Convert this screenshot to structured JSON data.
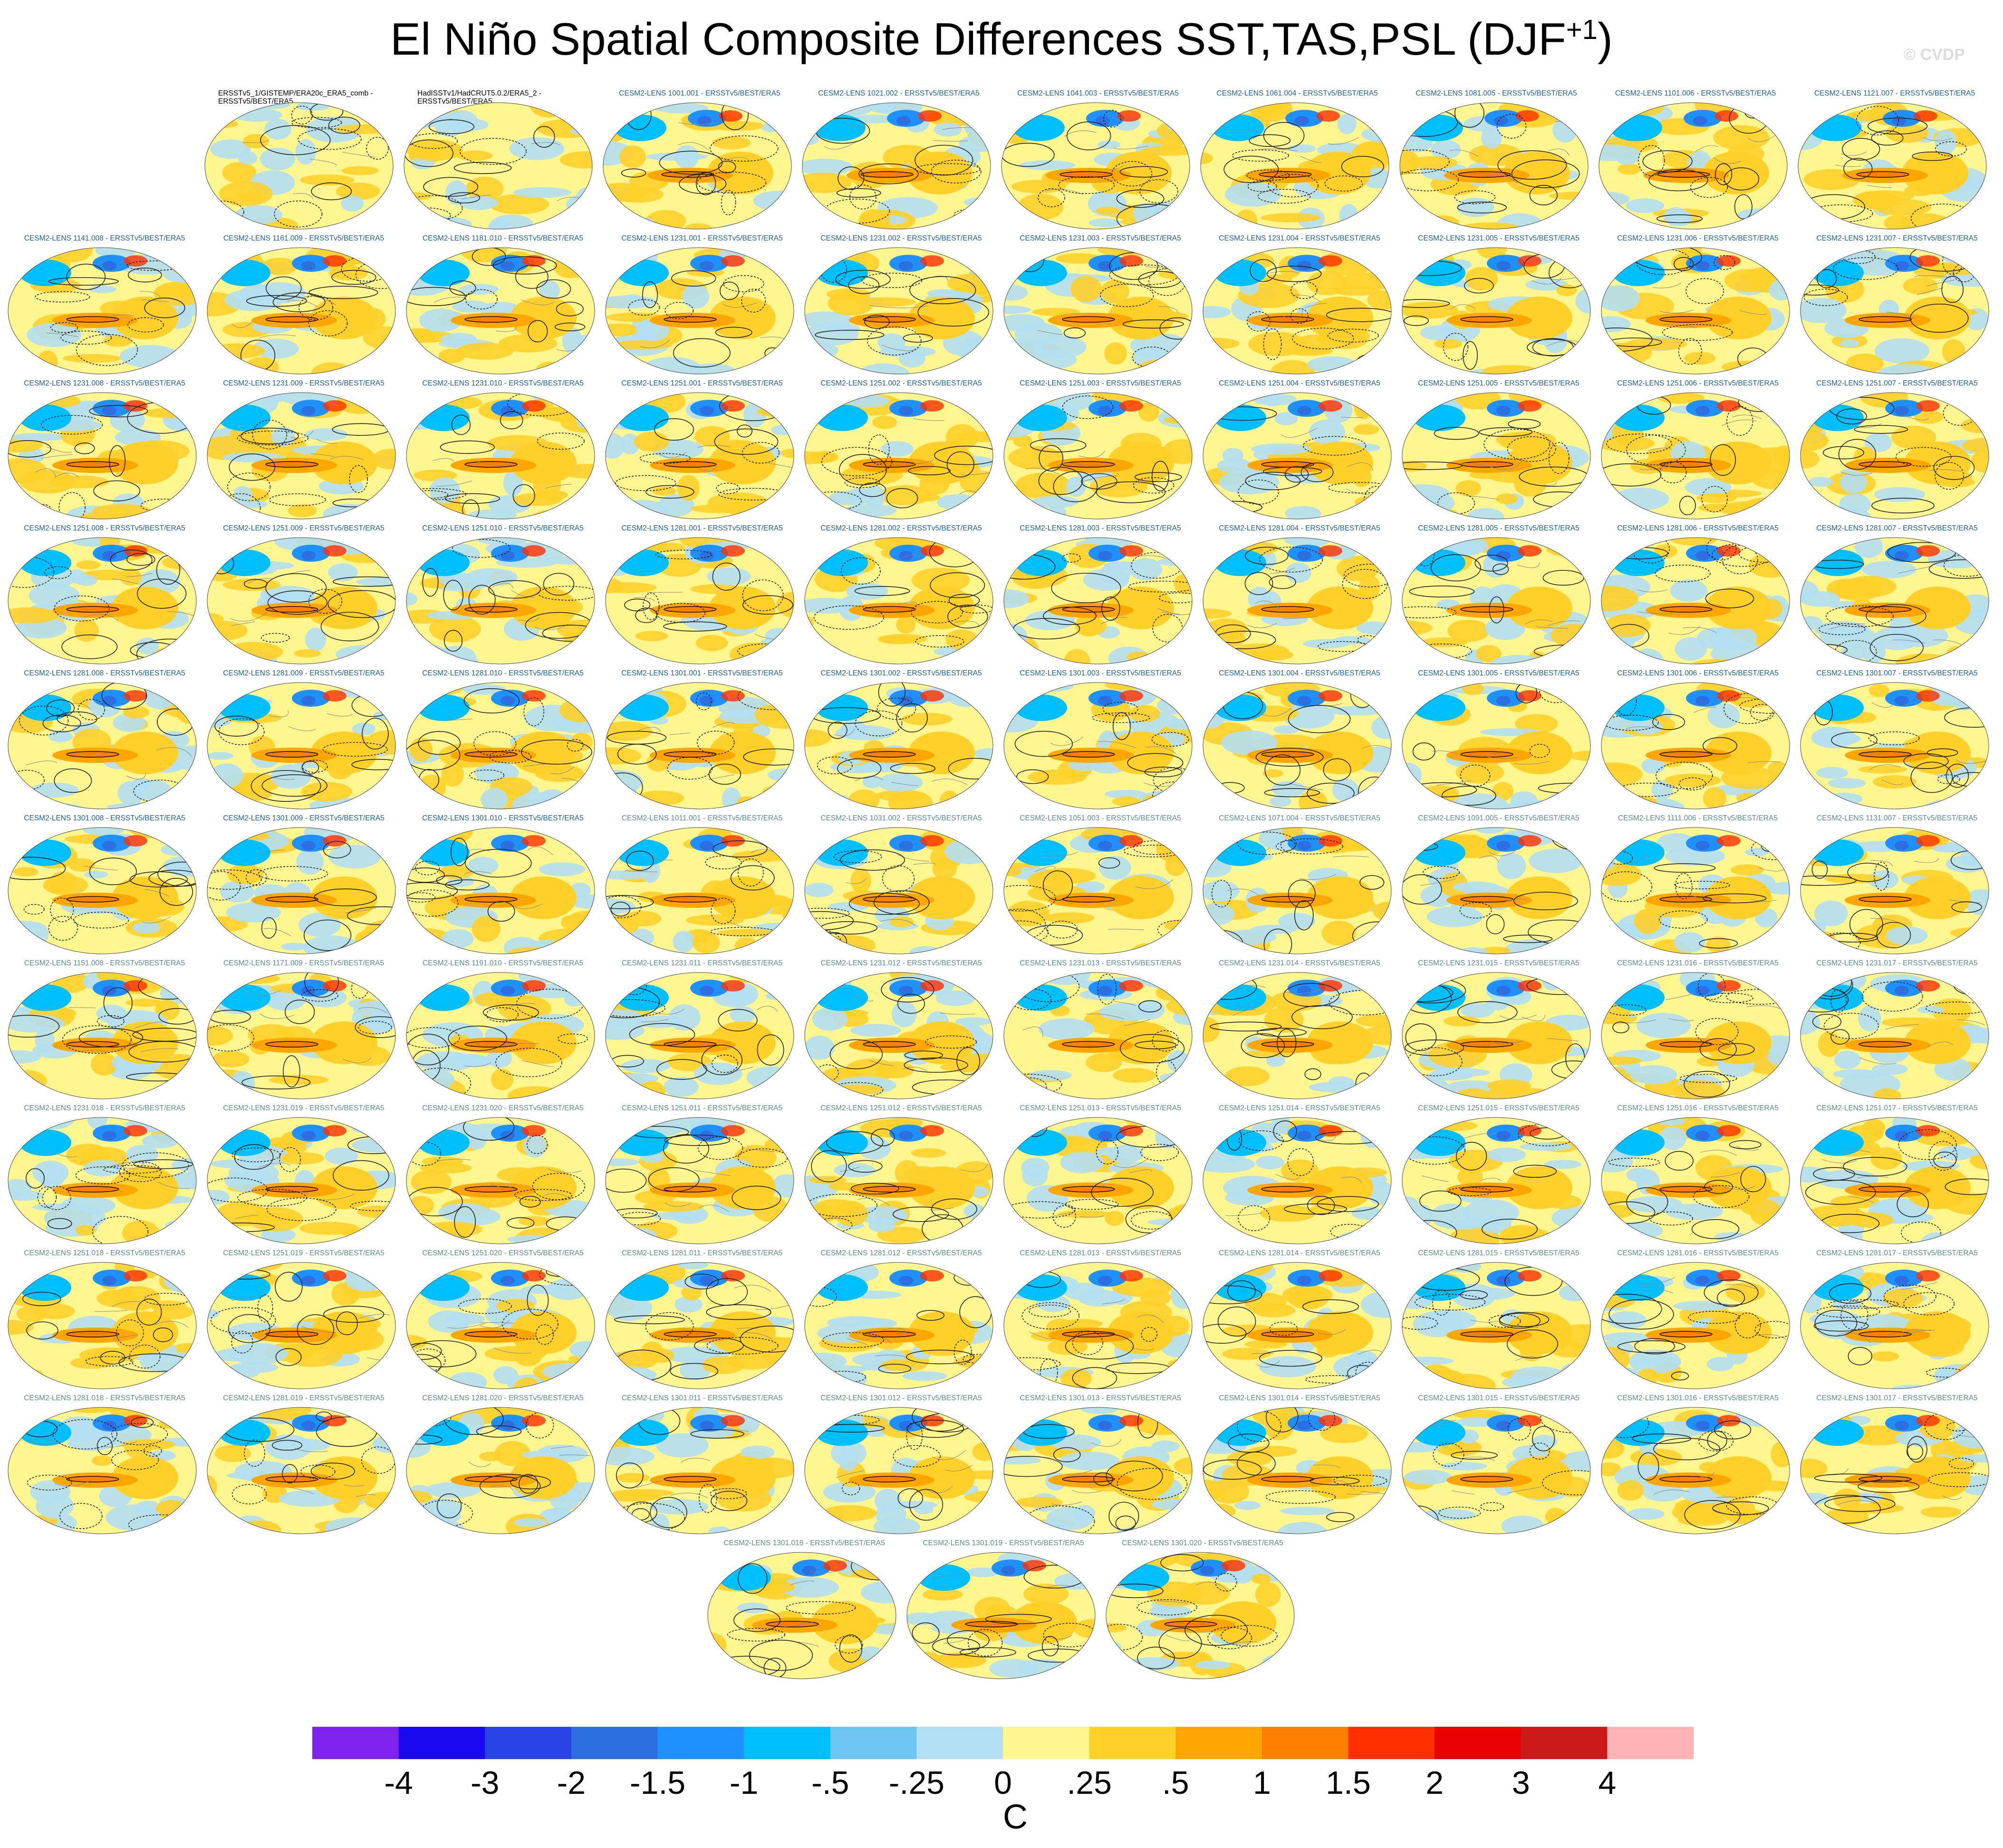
{
  "figure": {
    "title_main": "El Niño Spatial Composite Differences SST,TAS,PSL (DJF",
    "title_sup": "+1",
    "title_close": ")",
    "credit": "© CVDP"
  },
  "chart_data": {
    "type": "heatmap",
    "layout": "grid of global map panels (SST/TAS shading, PSL contours)",
    "panels": [
      {
        "label": "ERSSTv5_1/GISTEMP/ERA20c_ERA5_comb - ERSSTv5/BEST/ERA5",
        "kind": "obs"
      },
      {
        "label": "HadISSTv1/HadCRUT5.0.2/ERA5_2 - ERSSTv5/BEST/ERA5",
        "kind": "obs"
      },
      {
        "label": "CESM2-LENS 1001.001 - ERSSTv5/BEST/ERA5"
      },
      {
        "label": "CESM2-LENS 1021.002 - ERSSTv5/BEST/ERA5"
      },
      {
        "label": "CESM2-LENS 1041.003 - ERSSTv5/BEST/ERA5"
      },
      {
        "label": "CESM2-LENS 1061.004 - ERSSTv5/BEST/ERA5"
      },
      {
        "label": "CESM2-LENS 1081.005 - ERSSTv5/BEST/ERA5"
      },
      {
        "label": "CESM2-LENS 1101.006 - ERSSTv5/BEST/ERA5"
      },
      {
        "label": "CESM2-LENS 1121.007 - ERSSTv5/BEST/ERA5"
      },
      {
        "label": "CESM2-LENS 1141.008 - ERSSTv5/BEST/ERA5"
      },
      {
        "label": "CESM2-LENS 1161.009 - ERSSTv5/BEST/ERA5"
      },
      {
        "label": "CESM2-LENS 1181.010 - ERSSTv5/BEST/ERA5"
      },
      {
        "label": "CESM2-LENS 1231.001 - ERSSTv5/BEST/ERA5"
      },
      {
        "label": "CESM2-LENS 1231.002 - ERSSTv5/BEST/ERA5"
      },
      {
        "label": "CESM2-LENS 1231.003 - ERSSTv5/BEST/ERA5"
      },
      {
        "label": "CESM2-LENS 1231.004 - ERSSTv5/BEST/ERA5"
      },
      {
        "label": "CESM2-LENS 1231.005 - ERSSTv5/BEST/ERA5"
      },
      {
        "label": "CESM2-LENS 1231.006 - ERSSTv5/BEST/ERA5"
      },
      {
        "label": "CESM2-LENS 1231.007 - ERSSTv5/BEST/ERA5"
      },
      {
        "label": "CESM2-LENS 1231.008 - ERSSTv5/BEST/ERA5"
      },
      {
        "label": "CESM2-LENS 1231.009 - ERSSTv5/BEST/ERA5"
      },
      {
        "label": "CESM2-LENS 1231.010 - ERSSTv5/BEST/ERA5"
      },
      {
        "label": "CESM2-LENS 1251.001 - ERSSTv5/BEST/ERA5"
      },
      {
        "label": "CESM2-LENS 1251.002 - ERSSTv5/BEST/ERA5"
      },
      {
        "label": "CESM2-LENS 1251.003 - ERSSTv5/BEST/ERA5"
      },
      {
        "label": "CESM2-LENS 1251.004 - ERSSTv5/BEST/ERA5"
      },
      {
        "label": "CESM2-LENS 1251.005 - ERSSTv5/BEST/ERA5"
      },
      {
        "label": "CESM2-LENS 1251.006 - ERSSTv5/BEST/ERA5"
      },
      {
        "label": "CESM2-LENS 1251.007 - ERSSTv5/BEST/ERA5"
      },
      {
        "label": "CESM2-LENS 1251.008 - ERSSTv5/BEST/ERA5"
      },
      {
        "label": "CESM2-LENS 1251.009 - ERSSTv5/BEST/ERA5"
      },
      {
        "label": "CESM2-LENS 1251.010 - ERSSTv5/BEST/ERA5"
      },
      {
        "label": "CESM2-LENS 1281.001 - ERSSTv5/BEST/ERA5"
      },
      {
        "label": "CESM2-LENS 1281.002 - ERSSTv5/BEST/ERA5"
      },
      {
        "label": "CESM2-LENS 1281.003 - ERSSTv5/BEST/ERA5"
      },
      {
        "label": "CESM2-LENS 1281.004 - ERSSTv5/BEST/ERA5"
      },
      {
        "label": "CESM2-LENS 1281.005 - ERSSTv5/BEST/ERA5"
      },
      {
        "label": "CESM2-LENS 1281.006 - ERSSTv5/BEST/ERA5"
      },
      {
        "label": "CESM2-LENS 1281.007 - ERSSTv5/BEST/ERA5"
      },
      {
        "label": "CESM2-LENS 1281.008 - ERSSTv5/BEST/ERA5"
      },
      {
        "label": "CESM2-LENS 1281.009 - ERSSTv5/BEST/ERA5"
      },
      {
        "label": "CESM2-LENS 1281.010 - ERSSTv5/BEST/ERA5"
      },
      {
        "label": "CESM2-LENS 1301.001 - ERSSTv5/BEST/ERA5"
      },
      {
        "label": "CESM2-LENS 1301.002 - ERSSTv5/BEST/ERA5"
      },
      {
        "label": "CESM2-LENS 1301.003 - ERSSTv5/BEST/ERA5"
      },
      {
        "label": "CESM2-LENS 1301.004 - ERSSTv5/BEST/ERA5"
      },
      {
        "label": "CESM2-LENS 1301.005 - ERSSTv5/BEST/ERA5"
      },
      {
        "label": "CESM2-LENS 1301.006 - ERSSTv5/BEST/ERA5"
      },
      {
        "label": "CESM2-LENS 1301.007 - ERSSTv5/BEST/ERA5"
      },
      {
        "label": "CESM2-LENS 1301.008 - ERSSTv5/BEST/ERA5"
      },
      {
        "label": "CESM2-LENS 1301.009 - ERSSTv5/BEST/ERA5"
      },
      {
        "label": "CESM2-LENS 1301.010 - ERSSTv5/BEST/ERA5"
      },
      {
        "label": "CESM2-LENS 1011.001 - ERSSTv5/BEST/ERA5",
        "kind": "gray"
      },
      {
        "label": "CESM2-LENS 1031.002 - ERSSTv5/BEST/ERA5",
        "kind": "gray"
      },
      {
        "label": "CESM2-LENS 1051.003 - ERSSTv5/BEST/ERA5",
        "kind": "gray"
      },
      {
        "label": "CESM2-LENS 1071.004 - ERSSTv5/BEST/ERA5",
        "kind": "gray"
      },
      {
        "label": "CESM2-LENS 1091.005 - ERSSTv5/BEST/ERA5",
        "kind": "gray"
      },
      {
        "label": "CESM2-LENS 1111.006 - ERSSTv5/BEST/ERA5",
        "kind": "gray"
      },
      {
        "label": "CESM2-LENS 1131.007 - ERSSTv5/BEST/ERA5",
        "kind": "gray"
      },
      {
        "label": "CESM2-LENS 1151.008 - ERSSTv5/BEST/ERA5",
        "kind": "gray"
      },
      {
        "label": "CESM2-LENS 1171.009 - ERSSTv5/BEST/ERA5",
        "kind": "gray"
      },
      {
        "label": "CESM2-LENS 1191.010 - ERSSTv5/BEST/ERA5",
        "kind": "gray"
      },
      {
        "label": "CESM2-LENS 1231.011 - ERSSTv5/BEST/ERA5",
        "kind": "gray"
      },
      {
        "label": "CESM2-LENS 1231.012 - ERSSTv5/BEST/ERA5",
        "kind": "gray"
      },
      {
        "label": "CESM2-LENS 1231.013 - ERSSTv5/BEST/ERA5",
        "kind": "gray"
      },
      {
        "label": "CESM2-LENS 1231.014 - ERSSTv5/BEST/ERA5",
        "kind": "gray"
      },
      {
        "label": "CESM2-LENS 1231.015 - ERSSTv5/BEST/ERA5",
        "kind": "gray"
      },
      {
        "label": "CESM2-LENS 1231.016 - ERSSTv5/BEST/ERA5",
        "kind": "gray"
      },
      {
        "label": "CESM2-LENS 1231.017 - ERSSTv5/BEST/ERA5",
        "kind": "gray"
      },
      {
        "label": "CESM2-LENS 1231.018 - ERSSTv5/BEST/ERA5",
        "kind": "gray"
      },
      {
        "label": "CESM2-LENS 1231.019 - ERSSTv5/BEST/ERA5",
        "kind": "gray"
      },
      {
        "label": "CESM2-LENS 1231.020 - ERSSTv5/BEST/ERA5",
        "kind": "gray"
      },
      {
        "label": "CESM2-LENS 1251.011 - ERSSTv5/BEST/ERA5",
        "kind": "gray"
      },
      {
        "label": "CESM2-LENS 1251.012 - ERSSTv5/BEST/ERA5",
        "kind": "gray"
      },
      {
        "label": "CESM2-LENS 1251.013 - ERSSTv5/BEST/ERA5",
        "kind": "gray"
      },
      {
        "label": "CESM2-LENS 1251.014 - ERSSTv5/BEST/ERA5",
        "kind": "gray"
      },
      {
        "label": "CESM2-LENS 1251.015 - ERSSTv5/BEST/ERA5",
        "kind": "gray"
      },
      {
        "label": "CESM2-LENS 1251.016 - ERSSTv5/BEST/ERA5",
        "kind": "gray"
      },
      {
        "label": "CESM2-LENS 1251.017 - ERSSTv5/BEST/ERA5",
        "kind": "gray"
      },
      {
        "label": "CESM2-LENS 1251.018 - ERSSTv5/BEST/ERA5",
        "kind": "gray"
      },
      {
        "label": "CESM2-LENS 1251.019 - ERSSTv5/BEST/ERA5",
        "kind": "gray"
      },
      {
        "label": "CESM2-LENS 1251.020 - ERSSTv5/BEST/ERA5",
        "kind": "gray"
      },
      {
        "label": "CESM2-LENS 1281.011 - ERSSTv5/BEST/ERA5",
        "kind": "gray"
      },
      {
        "label": "CESM2-LENS 1281.012 - ERSSTv5/BEST/ERA5",
        "kind": "gray"
      },
      {
        "label": "CESM2-LENS 1281.013 - ERSSTv5/BEST/ERA5",
        "kind": "gray"
      },
      {
        "label": "CESM2-LENS 1281.014 - ERSSTv5/BEST/ERA5",
        "kind": "gray"
      },
      {
        "label": "CESM2-LENS 1281.015 - ERSSTv5/BEST/ERA5",
        "kind": "gray"
      },
      {
        "label": "CESM2-LENS 1281.016 - ERSSTv5/BEST/ERA5",
        "kind": "gray"
      },
      {
        "label": "CESM2-LENS 1281.017 - ERSSTv5/BEST/ERA5",
        "kind": "gray"
      },
      {
        "label": "CESM2-LENS 1281.018 - ERSSTv5/BEST/ERA5",
        "kind": "gray"
      },
      {
        "label": "CESM2-LENS 1281.019 - ERSSTv5/BEST/ERA5",
        "kind": "gray"
      },
      {
        "label": "CESM2-LENS 1281.020 - ERSSTv5/BEST/ERA5",
        "kind": "gray"
      },
      {
        "label": "CESM2-LENS 1301.011 - ERSSTv5/BEST/ERA5",
        "kind": "gray"
      },
      {
        "label": "CESM2-LENS 1301.012 - ERSSTv5/BEST/ERA5",
        "kind": "gray"
      },
      {
        "label": "CESM2-LENS 1301.013 - ERSSTv5/BEST/ERA5",
        "kind": "gray"
      },
      {
        "label": "CESM2-LENS 1301.014 - ERSSTv5/BEST/ERA5",
        "kind": "gray"
      },
      {
        "label": "CESM2-LENS 1301.015 - ERSSTv5/BEST/ERA5",
        "kind": "gray"
      },
      {
        "label": "CESM2-LENS 1301.016 - ERSSTv5/BEST/ERA5",
        "kind": "gray"
      },
      {
        "label": "CESM2-LENS 1301.017 - ERSSTv5/BEST/ERA5",
        "kind": "gray"
      },
      {
        "label": "CESM2-LENS 1301.018 - ERSSTv5/BEST/ERA5",
        "kind": "gray"
      },
      {
        "label": "CESM2-LENS 1301.019 - ERSSTv5/BEST/ERA5",
        "kind": "gray"
      },
      {
        "label": "CESM2-LENS 1301.020 - ERSSTv5/BEST/ERA5",
        "kind": "gray"
      }
    ],
    "colorbar": {
      "units": "C",
      "tick_labels": [
        "-4",
        "-3",
        "-2",
        "-1.5",
        "-1",
        "-.5",
        "-.25",
        "0",
        ".25",
        ".5",
        "1",
        "1.5",
        "2",
        "3",
        "4"
      ],
      "colors": [
        "#7e22ec",
        "#1a0af0",
        "#2844e4",
        "#2d6ee0",
        "#1e90ff",
        "#00bfff",
        "#6ec6f0",
        "#b3dff2",
        "#fff68f",
        "#ffd02a",
        "#ffa500",
        "#ff7f00",
        "#ff3000",
        "#e80000",
        "#cc1a1a",
        "#ffb3b3"
      ]
    }
  }
}
